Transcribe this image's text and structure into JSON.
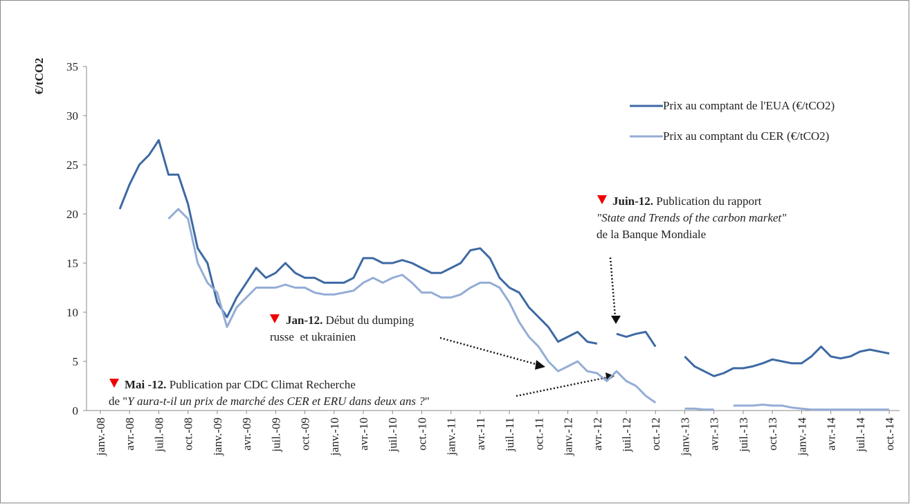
{
  "chart_data": {
    "type": "line",
    "y_label": "€/tCO2",
    "categories": [
      "janv.-08",
      null,
      null,
      "avr.-08",
      null,
      null,
      "juil.-08",
      null,
      null,
      "oct.-08",
      null,
      null,
      "janv.-09",
      null,
      null,
      "avr.-09",
      null,
      null,
      "juil.-09",
      null,
      null,
      "oct.-09",
      null,
      null,
      "janv.-10",
      null,
      null,
      "avr.-10",
      null,
      null,
      "juil.-10",
      null,
      null,
      "oct.-10",
      null,
      null,
      "janv.-11",
      null,
      null,
      "avr.-11",
      null,
      null,
      "juil.-11",
      null,
      null,
      "oct.-11",
      null,
      null,
      "janv.-12",
      null,
      null,
      "avr.-12",
      null,
      null,
      "juil.-12",
      null,
      null,
      "oct.-12",
      null,
      null,
      "janv.-13",
      null,
      null,
      "avr.-13",
      null,
      null,
      "juil.-13",
      null,
      null,
      "oct.-13",
      null,
      null,
      "janv.-14",
      null,
      null,
      "avr.-14",
      null,
      null,
      "juil.-14",
      null,
      null,
      "oct.-14"
    ],
    "series": [
      {
        "name": "Prix au comptant de l'EUA (€/tCO2)",
        "color": "#3d69a3",
        "values": [
          null,
          null,
          20.5,
          23,
          25,
          26,
          27.5,
          24,
          24,
          21,
          16.5,
          15,
          11,
          9.5,
          11.5,
          13,
          14.5,
          13.5,
          14,
          15,
          14,
          13.5,
          13.5,
          13,
          13,
          13,
          13.5,
          15.5,
          15.5,
          15,
          15,
          15.3,
          15,
          14.5,
          14,
          14,
          14.5,
          15,
          16.3,
          16.5,
          15.5,
          13.5,
          12.5,
          12,
          10.5,
          9.5,
          8.5,
          7,
          7.5,
          8,
          7,
          6.8,
          null,
          7.8,
          7.5,
          7.8,
          8,
          6.5,
          null,
          null,
          5.5,
          4.5,
          4,
          3.5,
          3.8,
          4.3,
          4.3,
          4.5,
          4.8,
          5.2,
          5,
          4.8,
          4.8,
          5.5,
          6.5,
          5.5,
          5.3,
          5.5,
          6,
          6.2,
          6,
          5.8
        ]
      },
      {
        "name": "Prix au comptant du CER (€/tCO2)",
        "color": "#94add6",
        "values": [
          null,
          null,
          null,
          null,
          null,
          null,
          null,
          19.5,
          20.5,
          19.5,
          15,
          13,
          12,
          8.5,
          10.5,
          11.5,
          12.5,
          12.5,
          12.5,
          12.8,
          12.5,
          12.5,
          12,
          11.8,
          11.8,
          12,
          12.2,
          13,
          13.5,
          13,
          13.5,
          13.8,
          13,
          12,
          12,
          11.5,
          11.5,
          11.8,
          12.5,
          13,
          13,
          12.5,
          11,
          9,
          7.5,
          6.5,
          5,
          4,
          4.5,
          5,
          4,
          3.8,
          3,
          4,
          3,
          2.5,
          1.5,
          0.8,
          null,
          null,
          0.2,
          0.2,
          0.1,
          0.1,
          null,
          0.5,
          0.5,
          0.5,
          0.6,
          0.5,
          0.5,
          0.3,
          0.2,
          0.1,
          0.1,
          0.1,
          0.1,
          0.1,
          0.1,
          0.1,
          0.1,
          0.1
        ]
      }
    ],
    "ylim": [
      0,
      35
    ],
    "yticks": [
      0,
      5,
      10,
      15,
      20,
      25,
      30,
      35
    ],
    "annotations": [
      {
        "lines": [
          [
            {
              "text": "Juin-12.",
              "style": "bold"
            },
            {
              "text": " Publication du rapport",
              "style": "normal"
            }
          ],
          [
            {
              "text": "\"State and Trends of the carbon market\"",
              "style": "italic"
            }
          ],
          [
            {
              "text": "de la Banque Mondiale",
              "style": "normal"
            }
          ]
        ]
      },
      {
        "lines": [
          [
            {
              "text": "Jan-12.",
              "style": "bold"
            },
            {
              "text": " Début du dumping",
              "style": "normal"
            }
          ],
          [
            {
              "text": "russe  et ukrainien",
              "style": "normal"
            }
          ]
        ]
      },
      {
        "lines": [
          [
            {
              "text": "Mai -12.",
              "style": "bold"
            },
            {
              "text": " Publication par CDC Climat Recherche",
              "style": "normal"
            }
          ],
          [
            {
              "text": "de \"",
              "style": "normal"
            },
            {
              "text": "Y aura-t-il un prix de marché des CER et ERU dans deux ans ?",
              "style": "italic"
            },
            {
              "text": "\"",
              "style": "normal"
            }
          ]
        ]
      }
    ]
  }
}
